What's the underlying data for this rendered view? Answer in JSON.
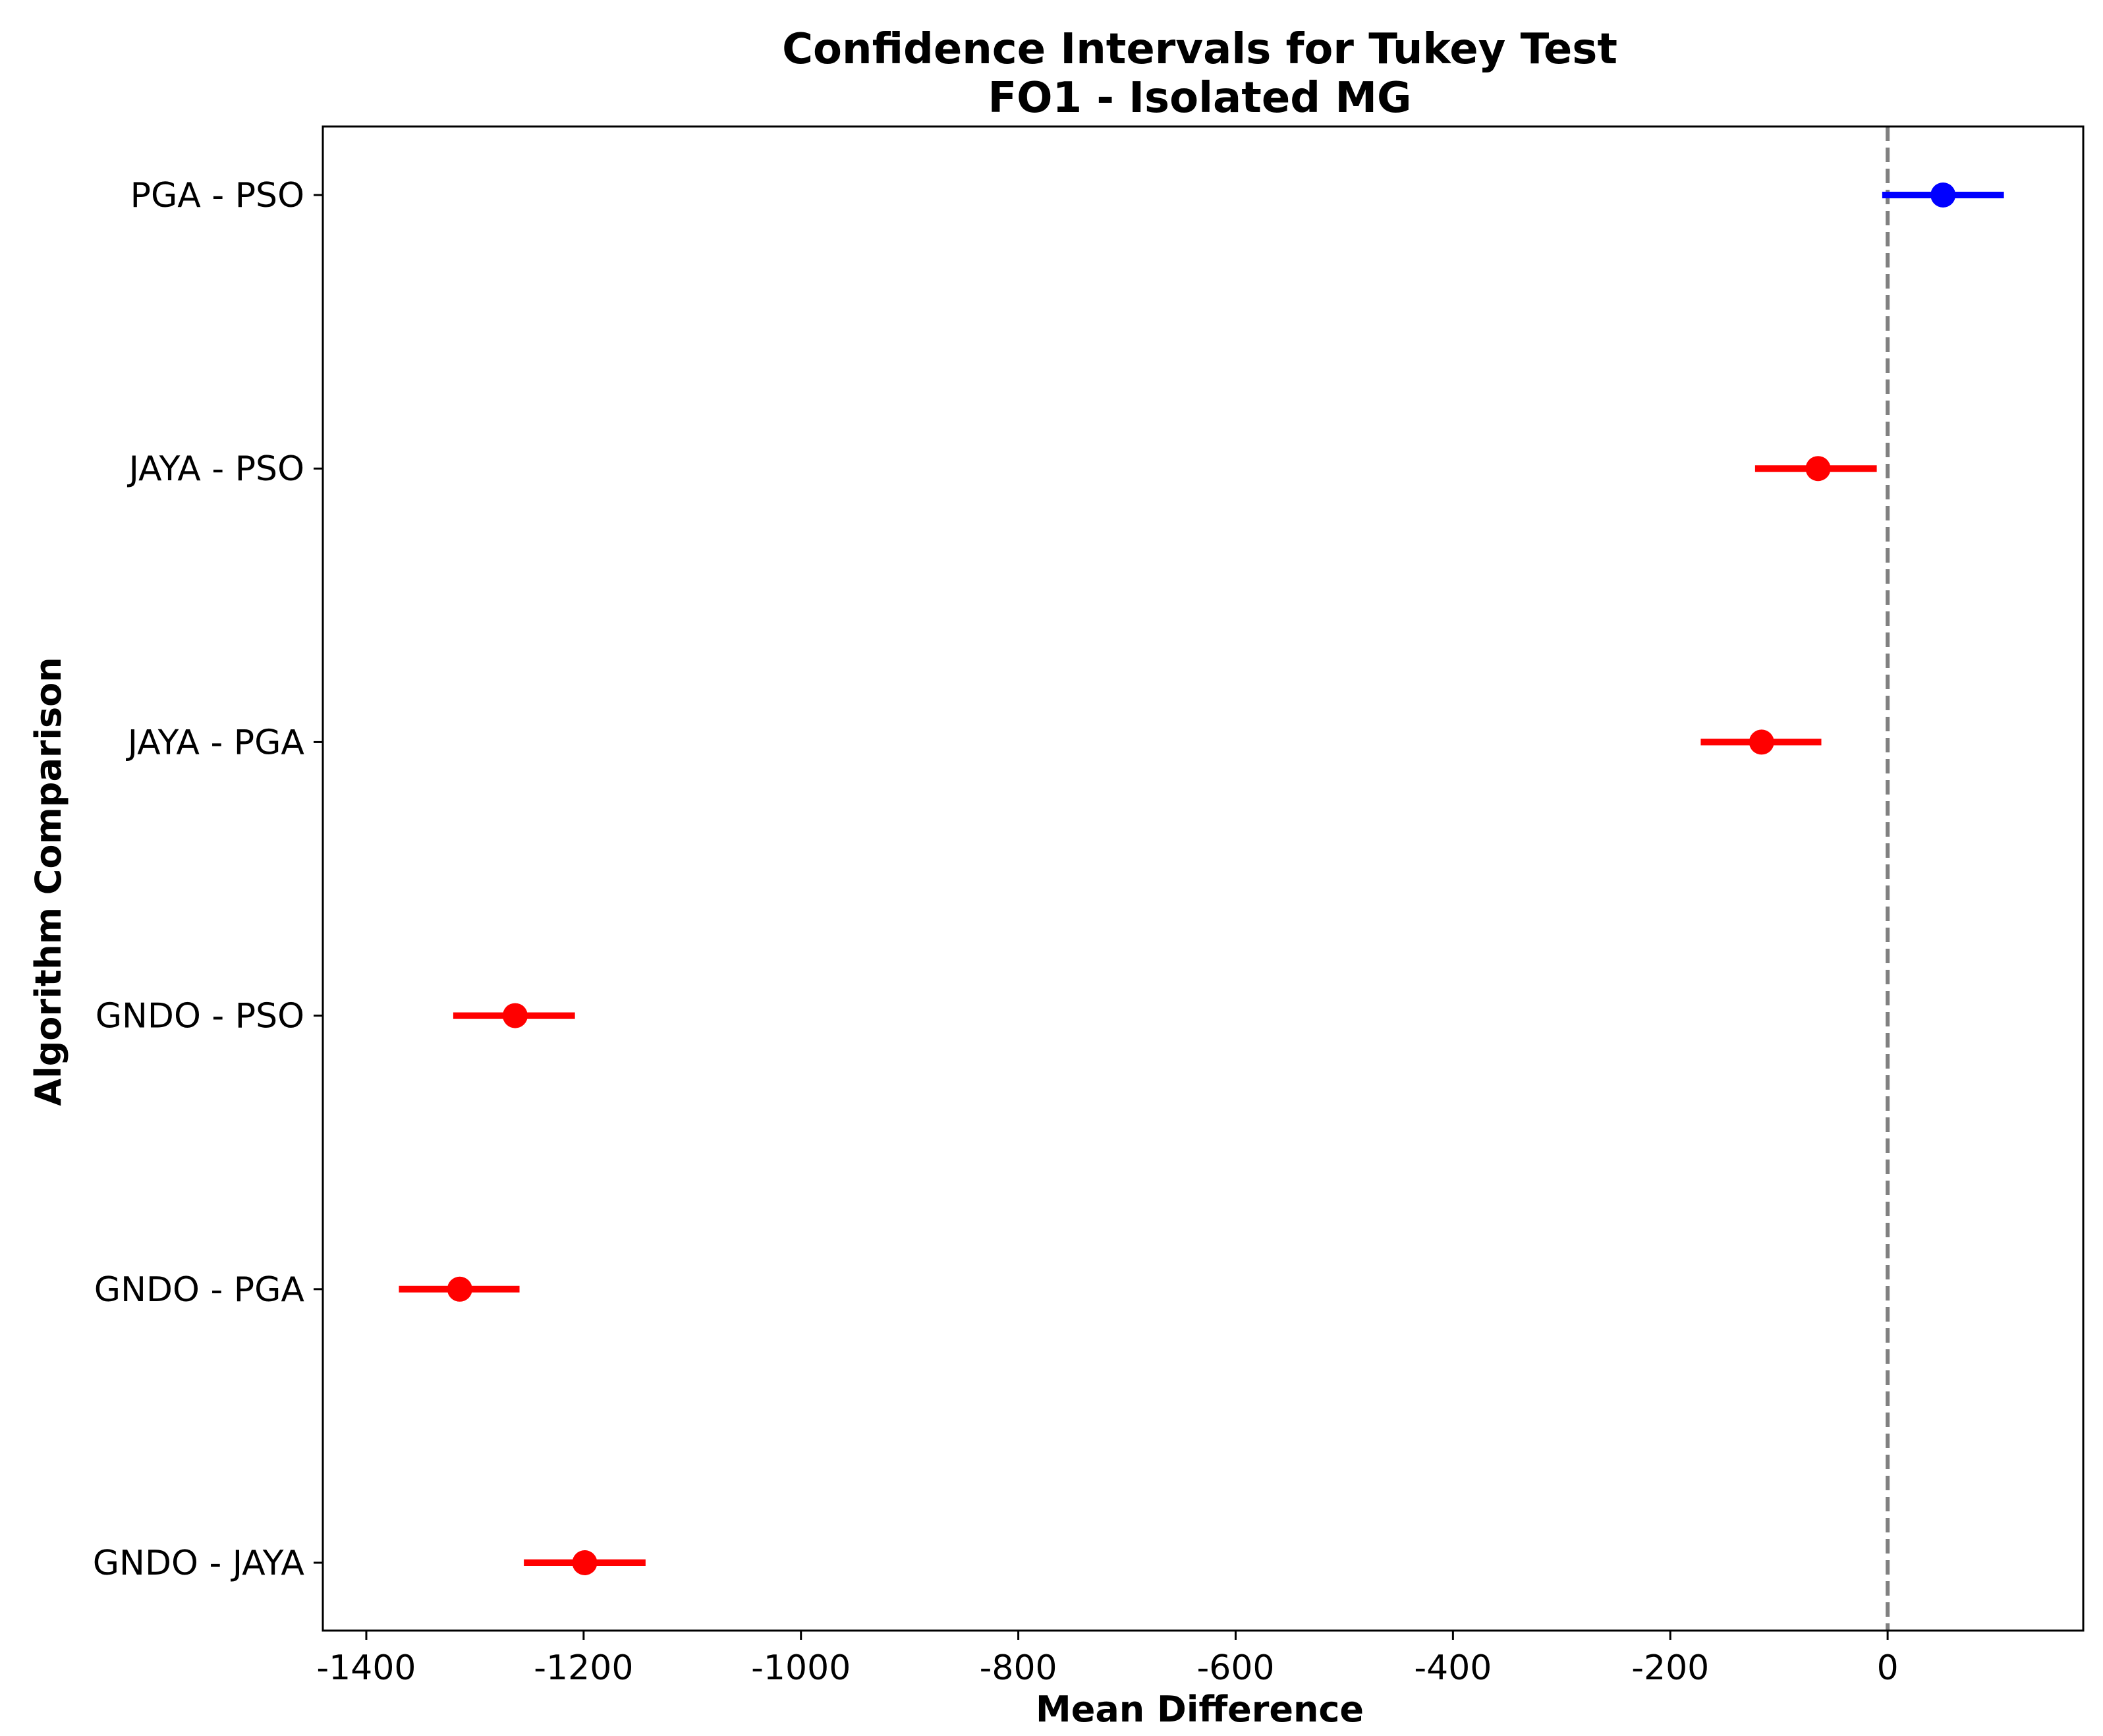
{
  "chart_data": {
    "type": "errorbar",
    "title": "Confidence Intervals for Tukey Test",
    "subtitle": "FO1 - Isolated MG",
    "xlabel": "Mean Difference",
    "ylabel": "Algorithm Comparison",
    "xlim": [
      -1440,
      180
    ],
    "x_ticks": [
      -1400,
      -1200,
      -1000,
      -800,
      -600,
      -400,
      -200,
      0
    ],
    "x_tick_labels": [
      "-1400",
      "-1200",
      "-1000",
      "-800",
      "-600",
      "-400",
      "-200",
      "0"
    ],
    "reference_line": {
      "x": 0,
      "style": "dashed",
      "color": "#808080"
    },
    "grid": false,
    "categories": [
      "PGA - PSO",
      "JAYA - PSO",
      "JAYA - PGA",
      "GNDO - PSO",
      "GNDO - PGA",
      "GNDO - JAYA"
    ],
    "points": [
      {
        "label": "PGA - PSO",
        "mean": 51,
        "lower": -5,
        "upper": 107,
        "color": "#0000ff"
      },
      {
        "label": "JAYA - PSO",
        "mean": -64,
        "lower": -122,
        "upper": -10,
        "color": "#ff0000"
      },
      {
        "label": "JAYA - PGA",
        "mean": -116,
        "lower": -172,
        "upper": -61,
        "color": "#ff0000"
      },
      {
        "label": "GNDO - PSO",
        "mean": -1263,
        "lower": -1320,
        "upper": -1208,
        "color": "#ff0000"
      },
      {
        "label": "GNDO - PGA",
        "mean": -1314,
        "lower": -1370,
        "upper": -1259,
        "color": "#ff0000"
      },
      {
        "label": "GNDO - JAYA",
        "mean": -1199,
        "lower": -1255,
        "upper": -1143,
        "color": "#ff0000"
      }
    ]
  }
}
